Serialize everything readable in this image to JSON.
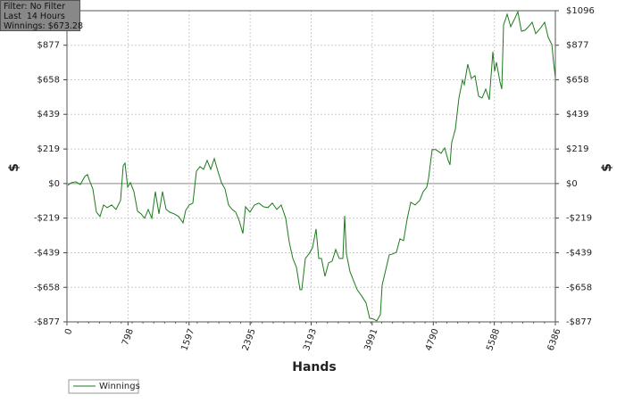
{
  "chart_data": {
    "type": "line",
    "x_label": "Hands",
    "y_label": "$",
    "y2_label": "$",
    "x": [
      12,
      58,
      117,
      175,
      234,
      269,
      292,
      339,
      385,
      432,
      479,
      525,
      584,
      642,
      701,
      736,
      759,
      794,
      829,
      876,
      922,
      969,
      1016,
      1062,
      1109,
      1156,
      1203,
      1249,
      1296,
      1343,
      1401,
      1459,
      1518,
      1553,
      1599,
      1646,
      1693,
      1740,
      1786,
      1833,
      1880,
      1926,
      1973,
      2020,
      2066,
      2113,
      2160,
      2207,
      2253,
      2300,
      2335,
      2393,
      2452,
      2510,
      2569,
      2627,
      2685,
      2744,
      2802,
      2860,
      2907,
      2954,
      3000,
      3047,
      3071,
      3117,
      3164,
      3211,
      3257,
      3292,
      3327,
      3374,
      3421,
      3467,
      3514,
      3561,
      3608,
      3631,
      3654,
      3701,
      3748,
      3794,
      3853,
      3911,
      3958,
      4005,
      4051,
      4098,
      4121,
      4168,
      4215,
      4261,
      4308,
      4355,
      4401,
      4448,
      4495,
      4553,
      4611,
      4658,
      4705,
      4728,
      4775,
      4822,
      4892,
      4938,
      4985,
      5008,
      5031,
      5078,
      5125,
      5172,
      5195,
      5241,
      5288,
      5335,
      5382,
      5429,
      5475,
      5522,
      5569,
      5592,
      5615,
      5662,
      5686,
      5709,
      5756,
      5802,
      5849,
      5896,
      5942,
      5989,
      6036,
      6083,
      6129,
      6188,
      6246,
      6293,
      6340,
      6363,
      6386
    ],
    "series": [
      {
        "name": "Winnings",
        "color": "#1e7a1e",
        "values": [
          -11,
          6,
          11,
          -6,
          45,
          57,
          23,
          -34,
          -181,
          -209,
          -136,
          -153,
          -136,
          -164,
          -107,
          113,
          130,
          -23,
          6,
          -51,
          -175,
          -192,
          -220,
          -164,
          -220,
          -51,
          -192,
          -51,
          -164,
          -181,
          -192,
          -209,
          -249,
          -170,
          -136,
          -124,
          79,
          107,
          90,
          147,
          90,
          158,
          79,
          6,
          -34,
          -136,
          -164,
          -181,
          -237,
          -317,
          -147,
          -181,
          -136,
          -124,
          -147,
          -153,
          -124,
          -164,
          -136,
          -220,
          -373,
          -475,
          -531,
          -673,
          -673,
          -475,
          -446,
          -407,
          -288,
          -475,
          -475,
          -588,
          -503,
          -492,
          -418,
          -475,
          -475,
          -204,
          -446,
          -559,
          -616,
          -673,
          -712,
          -757,
          -854,
          -859,
          -870,
          -831,
          -644,
          -548,
          -452,
          -446,
          -435,
          -350,
          -362,
          -226,
          -119,
          -136,
          -107,
          -51,
          -23,
          34,
          215,
          215,
          192,
          226,
          147,
          119,
          260,
          345,
          543,
          656,
          627,
          757,
          667,
          684,
          554,
          543,
          599,
          531,
          836,
          712,
          769,
          644,
          599,
          1006,
          1074,
          995,
          1040,
          1090,
          966,
          972,
          995,
          1023,
          950,
          983,
          1023,
          927,
          882,
          769,
          673
        ]
      }
    ],
    "xlim": [
      0,
      6386
    ],
    "xticks": [
      0,
      798,
      1597,
      2395,
      3193,
      3991,
      4790,
      5588,
      6386
    ],
    "ylim": [
      -877,
      1096
    ],
    "yticks": [
      {
        "value": -877,
        "label": "-$877"
      },
      {
        "value": -658,
        "label": "-$658"
      },
      {
        "value": -439,
        "label": "-$439"
      },
      {
        "value": -219,
        "label": "-$219"
      },
      {
        "value": 0,
        "label": "$0"
      },
      {
        "value": 219,
        "label": "$219"
      },
      {
        "value": 439,
        "label": "$439"
      },
      {
        "value": 658,
        "label": "$658"
      },
      {
        "value": 877,
        "label": "$877"
      },
      {
        "value": 1096,
        "label": "$1096"
      }
    ],
    "grid": true,
    "legend": "bottom-left"
  },
  "info_box": {
    "lines": [
      "Filter: No Filter",
      "Last  14 Hours",
      "Winnings: $673.28"
    ]
  }
}
